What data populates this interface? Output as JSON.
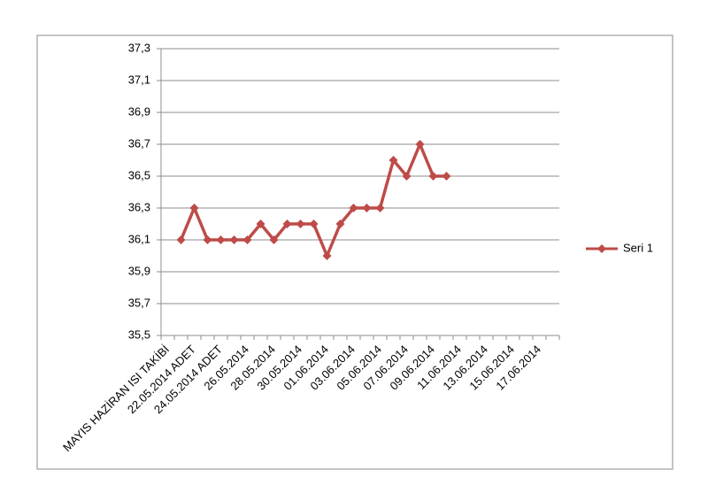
{
  "chart_data": {
    "type": "line",
    "categories": [
      "MAYIS HAZİRAN ISI TAKİBİ",
      null,
      "22.05.2014 ADET",
      null,
      "24.05.2014 ADET",
      null,
      "26.05.2014",
      null,
      "28.05.2014",
      null,
      "30.05.2014",
      null,
      "01.06.2014",
      null,
      "03.06.2014",
      null,
      "05.06.2014",
      null,
      "07.06.2014",
      null,
      "09.06.2014",
      null,
      "11.06.2014",
      null,
      "13.06.2014",
      null,
      "15.06.2014",
      null,
      "17.06.2014",
      null
    ],
    "series": [
      {
        "name": "Seri 1",
        "color": "#be4b48",
        "values": [
          null,
          36.1,
          36.3,
          36.1,
          36.1,
          36.1,
          36.1,
          36.2,
          36.1,
          36.2,
          36.2,
          36.2,
          36.0,
          36.2,
          36.3,
          36.3,
          36.3,
          36.6,
          36.5,
          36.7,
          36.5,
          36.5,
          null,
          null,
          null,
          null,
          null,
          null,
          null,
          null
        ]
      }
    ],
    "ylim": [
      35.5,
      37.3
    ],
    "yticks": [
      {
        "value": 35.5,
        "label": "35,5"
      },
      {
        "value": 35.7,
        "label": "35,7"
      },
      {
        "value": 35.9,
        "label": "35,9"
      },
      {
        "value": 36.1,
        "label": "36,1"
      },
      {
        "value": 36.3,
        "label": "36,3"
      },
      {
        "value": 36.5,
        "label": "36,5"
      },
      {
        "value": 36.7,
        "label": "36,7"
      },
      {
        "value": 36.9,
        "label": "36,9"
      },
      {
        "value": 37.1,
        "label": "37,1"
      },
      {
        "value": 37.3,
        "label": "37,3"
      }
    ],
    "grid": true,
    "legend": "right"
  }
}
